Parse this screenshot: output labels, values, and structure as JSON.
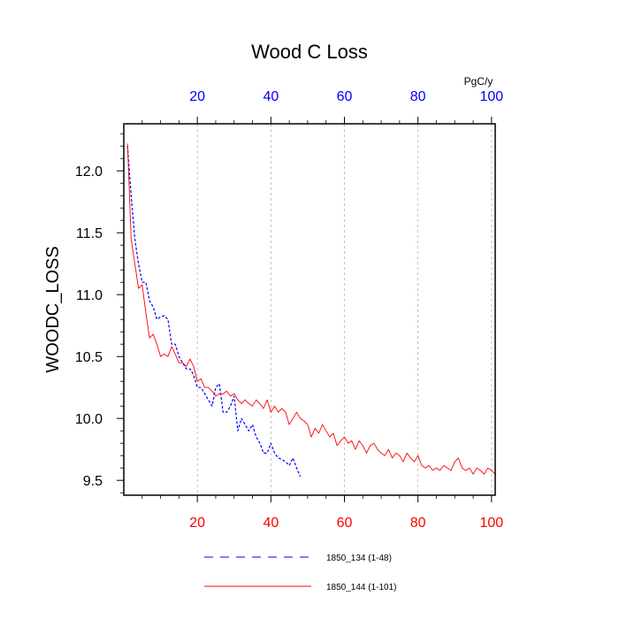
{
  "chart_data": {
    "type": "line",
    "title": "Wood C Loss",
    "ylabel": "WOODC_LOSS",
    "xlabel": "",
    "top_axis_unit": "PgC/y",
    "xlim": [
      0,
      101
    ],
    "ylim": [
      9.38,
      12.38
    ],
    "yticks": [
      9.5,
      10.0,
      10.5,
      11.0,
      11.5,
      12.0
    ],
    "ytick_labels": [
      "9.5",
      "10.0",
      "10.5",
      "11.0",
      "11.5",
      "12.0"
    ],
    "xticks_bottom": [
      20,
      40,
      60,
      80,
      100
    ],
    "xtick_labels_bottom": [
      "20",
      "40",
      "60",
      "80",
      "100"
    ],
    "xticks_top": [
      20,
      40,
      60,
      80,
      100
    ],
    "xtick_labels_top": [
      "20",
      "40",
      "60",
      "80",
      "100"
    ],
    "grid_x": true,
    "legend_position": "bottom",
    "colors": {
      "bottom_ticks": "#ff0000",
      "top_ticks": "#0000ff"
    },
    "series": [
      {
        "name": "1850_134 (1-48)",
        "color": "#0000ff",
        "style": "dashed",
        "x": [
          1,
          2,
          3,
          4,
          5,
          6,
          7,
          8,
          9,
          10,
          11,
          12,
          13,
          14,
          15,
          16,
          17,
          18,
          19,
          20,
          21,
          22,
          23,
          24,
          25,
          26,
          27,
          28,
          29,
          30,
          31,
          32,
          33,
          34,
          35,
          36,
          37,
          38,
          39,
          40,
          41,
          42,
          43,
          44,
          45,
          46,
          47,
          48
        ],
        "y": [
          12.2,
          11.8,
          11.45,
          11.25,
          11.1,
          11.1,
          10.95,
          10.9,
          10.8,
          10.82,
          10.83,
          10.8,
          10.6,
          10.6,
          10.5,
          10.45,
          10.4,
          10.4,
          10.35,
          10.25,
          10.25,
          10.2,
          10.15,
          10.1,
          10.25,
          10.28,
          10.05,
          10.05,
          10.1,
          10.18,
          9.9,
          10.0,
          9.95,
          9.9,
          9.95,
          9.85,
          9.8,
          9.72,
          9.72,
          9.8,
          9.72,
          9.68,
          9.67,
          9.65,
          9.62,
          9.68,
          9.6,
          9.53
        ]
      },
      {
        "name": "1850_144 (1-101)",
        "color": "#ff0000",
        "style": "solid",
        "x": [
          1,
          2,
          3,
          4,
          5,
          6,
          7,
          8,
          9,
          10,
          11,
          12,
          13,
          14,
          15,
          16,
          17,
          18,
          19,
          20,
          21,
          22,
          23,
          24,
          25,
          26,
          27,
          28,
          29,
          30,
          31,
          32,
          33,
          34,
          35,
          36,
          37,
          38,
          39,
          40,
          41,
          42,
          43,
          44,
          45,
          46,
          47,
          48,
          49,
          50,
          51,
          52,
          53,
          54,
          55,
          56,
          57,
          58,
          59,
          60,
          61,
          62,
          63,
          64,
          65,
          66,
          67,
          68,
          69,
          70,
          71,
          72,
          73,
          74,
          75,
          76,
          77,
          78,
          79,
          80,
          81,
          82,
          83,
          84,
          85,
          86,
          87,
          88,
          89,
          90,
          91,
          92,
          93,
          94,
          95,
          96,
          97,
          98,
          99,
          100,
          101
        ],
        "y": [
          12.22,
          11.45,
          11.25,
          11.05,
          11.08,
          10.85,
          10.65,
          10.68,
          10.6,
          10.5,
          10.52,
          10.5,
          10.58,
          10.52,
          10.45,
          10.45,
          10.42,
          10.48,
          10.42,
          10.3,
          10.32,
          10.25,
          10.25,
          10.22,
          10.18,
          10.2,
          10.2,
          10.22,
          10.18,
          10.2,
          10.15,
          10.12,
          10.15,
          10.12,
          10.1,
          10.15,
          10.12,
          10.08,
          10.15,
          10.05,
          10.1,
          10.05,
          10.08,
          10.05,
          9.95,
          10.0,
          10.05,
          10.0,
          9.98,
          9.95,
          9.85,
          9.92,
          9.88,
          9.95,
          9.9,
          9.85,
          9.88,
          9.78,
          9.82,
          9.85,
          9.8,
          9.82,
          9.75,
          9.82,
          9.78,
          9.72,
          9.78,
          9.8,
          9.75,
          9.72,
          9.7,
          9.75,
          9.68,
          9.72,
          9.7,
          9.65,
          9.72,
          9.68,
          9.65,
          9.7,
          9.62,
          9.6,
          9.62,
          9.58,
          9.6,
          9.58,
          9.62,
          9.6,
          9.58,
          9.65,
          9.68,
          9.6,
          9.58,
          9.6,
          9.55,
          9.6,
          9.58,
          9.55,
          9.6,
          9.58,
          9.55
        ]
      }
    ]
  }
}
